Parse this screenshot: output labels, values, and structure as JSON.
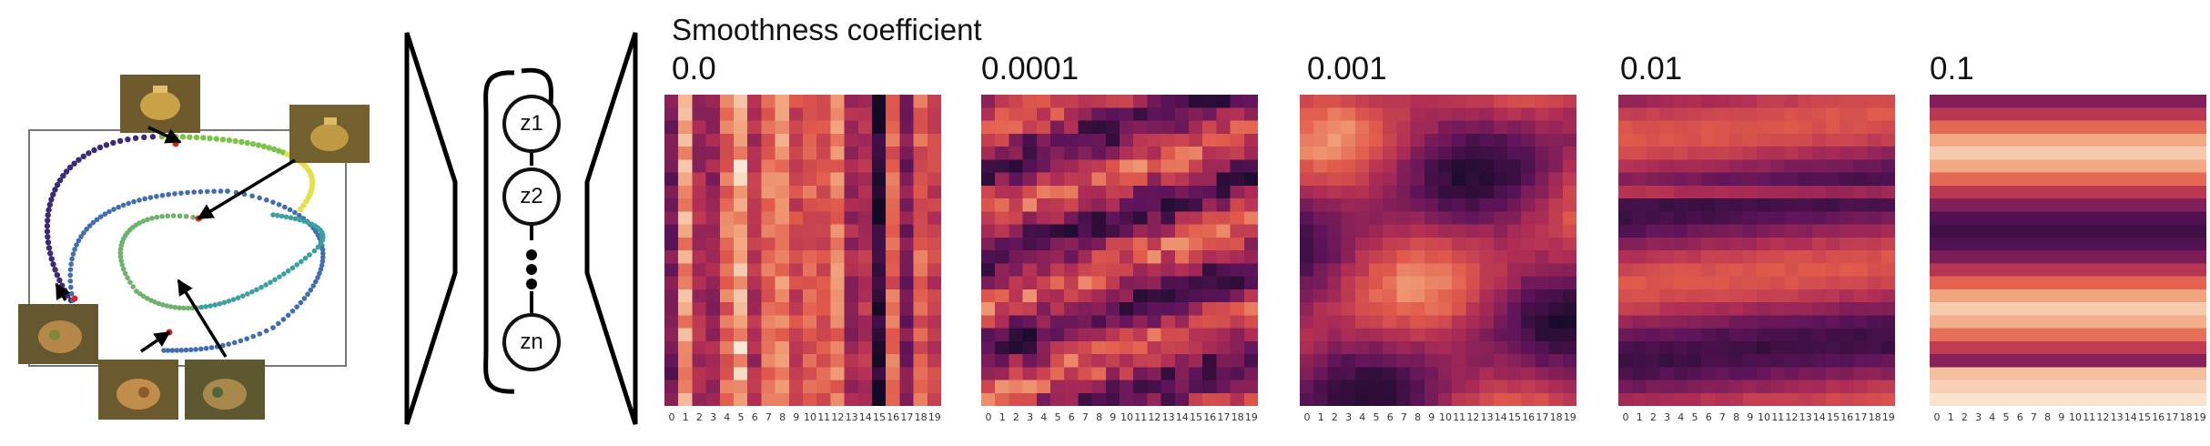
{
  "title": "Smoothness coefficient",
  "coefficients": [
    "0.0",
    "0.0001",
    "0.001",
    "0.01",
    "0.1"
  ],
  "latent_nodes": [
    "z1",
    "z2",
    "zn"
  ],
  "heatmaps": [
    {
      "name": "heatmap-0.0",
      "smoothness": 0.0
    },
    {
      "name": "heatmap-0.0001",
      "smoothness": 0.0001
    },
    {
      "name": "heatmap-0.001",
      "smoothness": 0.001
    },
    {
      "name": "heatmap-0.01",
      "smoothness": 0.01
    },
    {
      "name": "heatmap-0.1",
      "smoothness": 0.1
    }
  ],
  "x_ticks": [
    "0",
    "1",
    "2",
    "3",
    "4",
    "5",
    "6",
    "7",
    "8",
    "9",
    "10",
    "11",
    "12",
    "13",
    "14",
    "15",
    "16",
    "17",
    "18",
    "19"
  ],
  "colors": {
    "colormap": "inferno-like",
    "dark": "#1a0b2e",
    "mid": "#c23d4e",
    "light": "#fbe6d2"
  }
}
